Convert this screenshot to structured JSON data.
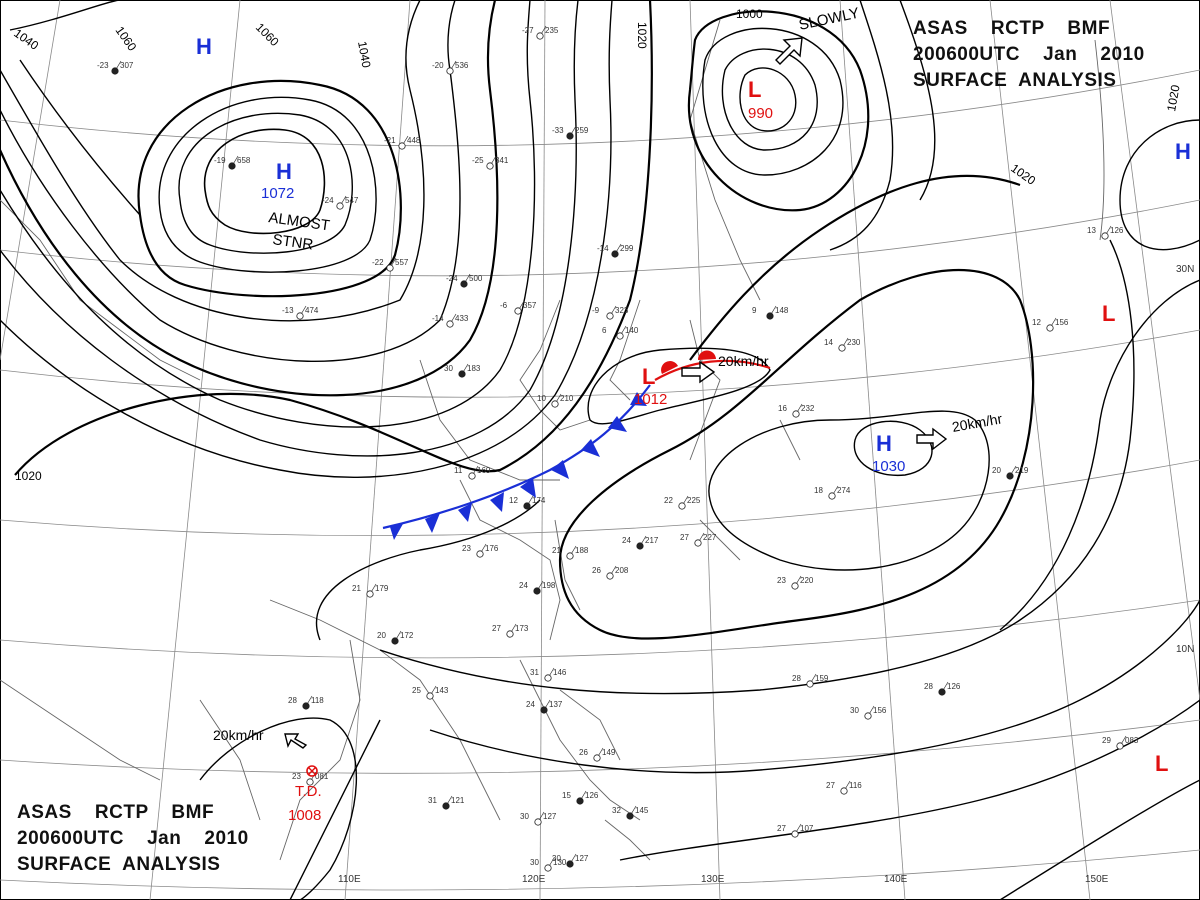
{
  "header_top": {
    "line1": "ASAS    RCTP    BMF",
    "line2": "200600UTC    Jan    2010",
    "line3": "SURFACE  ANALYSIS"
  },
  "header_bottom": {
    "line1": "ASAS    RCTP    BMF",
    "line2": "200600UTC    Jan    2010",
    "line3": "SURFACE  ANALYSIS"
  },
  "colors": {
    "high": "#1a2fd6",
    "low": "#e01010",
    "isobar": "#000000",
    "grid": "#888888",
    "coast": "#555555"
  },
  "pressure_centers": [
    {
      "name": "high-north-west",
      "symbol": "H",
      "value": ""
    },
    {
      "name": "high-mongolia",
      "symbol": "H",
      "value": "1072"
    },
    {
      "name": "low-kamchatka",
      "symbol": "L",
      "value": "990"
    },
    {
      "name": "low-korea",
      "symbol": "L",
      "value": "1012"
    },
    {
      "name": "high-pacific",
      "symbol": "H",
      "value": "1030"
    },
    {
      "name": "high-east-edge",
      "symbol": "H",
      "value": ""
    },
    {
      "name": "low-east-pacific",
      "symbol": "L",
      "value": ""
    },
    {
      "name": "low-south-east",
      "symbol": "L",
      "value": ""
    },
    {
      "name": "td-south-china-sea",
      "symbol": "T.D.",
      "value": "1008"
    }
  ],
  "isobar_labels": [
    "1040",
    "1060",
    "1060",
    "1040",
    "1020",
    "1000",
    "1020",
    "1020",
    "1020"
  ],
  "annotations": {
    "almost_stnr_1": "ALMOST",
    "almost_stnr_2": "STNR",
    "slowly": "SLOWLY",
    "speed_korea": "20km/hr",
    "speed_pacific": "20km/hr",
    "speed_td": "20km/hr"
  },
  "lon_labels": [
    "110E",
    "120E",
    "130E",
    "140E",
    "150E"
  ],
  "lat_labels": [
    "30N",
    "10N"
  ],
  "stations": [
    {
      "t": "-23",
      "p": "307"
    },
    {
      "t": "-20",
      "p": "536"
    },
    {
      "t": "-27",
      "p": "235"
    },
    {
      "t": "-19",
      "p": "658"
    },
    {
      "t": "-21",
      "p": "448"
    },
    {
      "t": "-25",
      "p": "341"
    },
    {
      "t": "-33",
      "p": "259"
    },
    {
      "t": "-24",
      "p": "547"
    },
    {
      "t": "-22",
      "p": "557"
    },
    {
      "t": "-24",
      "p": "500"
    },
    {
      "t": "-13",
      "p": "474"
    },
    {
      "t": "-14",
      "p": "433"
    },
    {
      "t": "-14",
      "p": "299"
    },
    {
      "t": "-6",
      "p": "357"
    },
    {
      "t": "-9",
      "p": "323"
    },
    {
      "t": "30",
      "p": "183"
    },
    {
      "t": "10",
      "p": "210"
    },
    {
      "t": "6",
      "p": "140"
    },
    {
      "t": "9",
      "p": "148"
    },
    {
      "t": "14",
      "p": "230"
    },
    {
      "t": "16",
      "p": "232"
    },
    {
      "t": "20",
      "p": "219"
    },
    {
      "t": "18",
      "p": "274"
    },
    {
      "t": "11",
      "p": "169"
    },
    {
      "t": "12",
      "p": "174"
    },
    {
      "t": "23",
      "p": "176"
    },
    {
      "t": "22",
      "p": "225"
    },
    {
      "t": "24",
      "p": "217"
    },
    {
      "t": "27",
      "p": "227"
    },
    {
      "t": "21",
      "p": "188"
    },
    {
      "t": "24",
      "p": "198"
    },
    {
      "t": "26",
      "p": "208"
    },
    {
      "t": "21",
      "p": "179"
    },
    {
      "t": "20",
      "p": "172"
    },
    {
      "t": "27",
      "p": "173"
    },
    {
      "t": "23",
      "p": "220"
    },
    {
      "t": "28",
      "p": "118"
    },
    {
      "t": "25",
      "p": "143"
    },
    {
      "t": "31",
      "p": "146"
    },
    {
      "t": "24",
      "p": "137"
    },
    {
      "t": "28",
      "p": "159"
    },
    {
      "t": "30",
      "p": "156"
    },
    {
      "t": "28",
      "p": "126"
    },
    {
      "t": "29",
      "p": "083"
    },
    {
      "t": "23",
      "p": "081"
    },
    {
      "t": "31",
      "p": "121"
    },
    {
      "t": "30",
      "p": "127"
    },
    {
      "t": "30",
      "p": "130"
    },
    {
      "t": "32",
      "p": "145"
    },
    {
      "t": "27",
      "p": "116"
    },
    {
      "t": "27",
      "p": "107"
    },
    {
      "t": "30",
      "p": "127"
    },
    {
      "t": "12",
      "p": "156"
    },
    {
      "t": "26",
      "p": "149"
    },
    {
      "t": "15",
      "p": "126"
    },
    {
      "t": "13",
      "p": "126"
    }
  ]
}
